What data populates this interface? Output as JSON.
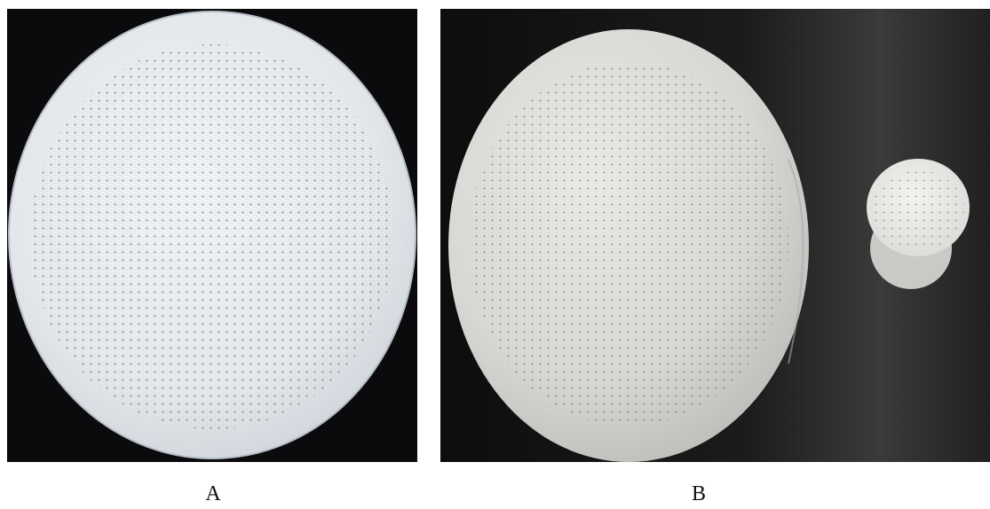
{
  "panels": [
    {
      "label": "A",
      "background": "#0b0b0d",
      "disc_color": "#e6eaee",
      "hole_color": "#3a3d42"
    },
    {
      "label": "B",
      "background": "#151515",
      "disc_color": "#dcdcd9",
      "small_disc_color": "#e9e9e6",
      "hole_color": "#4a4a48"
    }
  ]
}
